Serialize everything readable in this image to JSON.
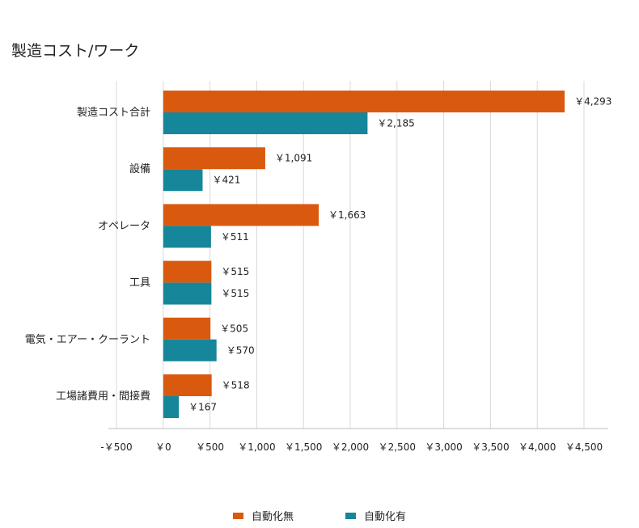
{
  "chart_data": {
    "type": "bar",
    "orientation": "horizontal",
    "title": "製造コスト/ワーク",
    "categories": [
      "製造コスト合計",
      "設備",
      "オペレータ",
      "工具",
      "電気・エアー・クーラント",
      "工場諸費用・間接費"
    ],
    "series": [
      {
        "name": "自動化無",
        "color": "#d95a0f",
        "values": [
          4293,
          1091,
          1663,
          515,
          505,
          518
        ],
        "labels": [
          "￥4,293",
          "￥1,091",
          "￥1,663",
          "￥515",
          "￥505",
          "￥518"
        ]
      },
      {
        "name": "自動化有",
        "color": "#16869a",
        "values": [
          2185,
          421,
          511,
          515,
          570,
          167
        ],
        "labels": [
          "￥2,185",
          "￥421",
          "￥511",
          "￥515",
          "￥570",
          "￥167"
        ]
      }
    ],
    "xlim": [
      -500,
      4500
    ],
    "x_ticks": [
      -500,
      0,
      500,
      1000,
      1500,
      2000,
      2500,
      3000,
      3500,
      4000,
      4500
    ],
    "x_tick_labels": [
      "-￥500",
      "￥0",
      "￥500",
      "￥1,000",
      "￥1,500",
      "￥2,000",
      "￥2,500",
      "￥3,000",
      "￥3,500",
      "￥4,000",
      "￥4,500"
    ],
    "grid": true,
    "legend_position": "bottom"
  }
}
